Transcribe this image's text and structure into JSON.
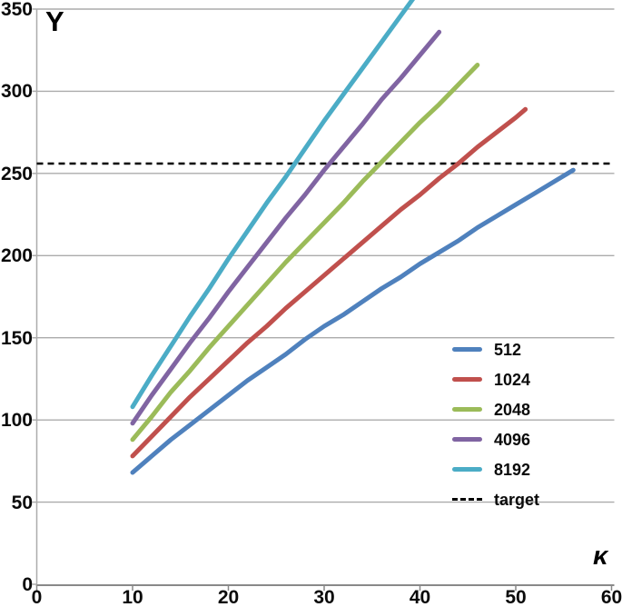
{
  "chart_data": {
    "type": "line",
    "title": "",
    "xlabel": "κ",
    "ylabel": "Y",
    "xlim": [
      0,
      60
    ],
    "ylim": [
      0,
      350
    ],
    "x_ticks": [
      0,
      10,
      20,
      30,
      40,
      50,
      60
    ],
    "y_ticks": [
      0,
      50,
      100,
      150,
      200,
      250,
      300,
      350
    ],
    "grid": "horizontal-only",
    "legend_position": "inside lower right",
    "target_line": {
      "label": "target",
      "value": 256,
      "color": "#000000",
      "style": "dashed"
    },
    "series": [
      {
        "name": "512",
        "color": "#4F81BD",
        "points": [
          [
            10,
            68
          ],
          [
            12,
            78
          ],
          [
            14,
            88
          ],
          [
            16,
            97
          ],
          [
            18,
            106
          ],
          [
            20,
            115
          ],
          [
            22,
            124
          ],
          [
            24,
            132
          ],
          [
            26,
            140
          ],
          [
            28,
            149
          ],
          [
            30,
            157
          ],
          [
            32,
            164
          ],
          [
            34,
            172
          ],
          [
            36,
            180
          ],
          [
            38,
            187
          ],
          [
            40,
            195
          ],
          [
            42,
            202
          ],
          [
            44,
            209
          ],
          [
            46,
            217
          ],
          [
            48,
            224
          ],
          [
            50,
            231
          ],
          [
            52,
            238
          ],
          [
            54,
            245
          ],
          [
            56,
            252
          ]
        ]
      },
      {
        "name": "1024",
        "color": "#C0504D",
        "points": [
          [
            10,
            78
          ],
          [
            12,
            90
          ],
          [
            14,
            102
          ],
          [
            16,
            114
          ],
          [
            18,
            125
          ],
          [
            20,
            136
          ],
          [
            22,
            147
          ],
          [
            24,
            157
          ],
          [
            26,
            168
          ],
          [
            28,
            178
          ],
          [
            30,
            188
          ],
          [
            32,
            198
          ],
          [
            34,
            208
          ],
          [
            36,
            218
          ],
          [
            38,
            228
          ],
          [
            40,
            237
          ],
          [
            42,
            247
          ],
          [
            44,
            256
          ],
          [
            46,
            266
          ],
          [
            48,
            275
          ],
          [
            50,
            284
          ],
          [
            51,
            289
          ]
        ]
      },
      {
        "name": "2048",
        "color": "#9BBB59",
        "points": [
          [
            10,
            88
          ],
          [
            12,
            102
          ],
          [
            14,
            117
          ],
          [
            16,
            130
          ],
          [
            18,
            144
          ],
          [
            20,
            157
          ],
          [
            22,
            170
          ],
          [
            24,
            183
          ],
          [
            26,
            196
          ],
          [
            28,
            208
          ],
          [
            30,
            220
          ],
          [
            32,
            232
          ],
          [
            34,
            245
          ],
          [
            36,
            257
          ],
          [
            38,
            269
          ],
          [
            40,
            281
          ],
          [
            42,
            292
          ],
          [
            44,
            304
          ],
          [
            46,
            316
          ]
        ]
      },
      {
        "name": "4096",
        "color": "#8064A2",
        "points": [
          [
            10,
            98
          ],
          [
            12,
            115
          ],
          [
            14,
            131
          ],
          [
            16,
            147
          ],
          [
            18,
            162
          ],
          [
            20,
            178
          ],
          [
            22,
            193
          ],
          [
            24,
            208
          ],
          [
            26,
            223
          ],
          [
            28,
            237
          ],
          [
            30,
            252
          ],
          [
            32,
            266
          ],
          [
            34,
            280
          ],
          [
            36,
            295
          ],
          [
            38,
            308
          ],
          [
            40,
            322
          ],
          [
            42,
            336
          ]
        ]
      },
      {
        "name": "8192",
        "color": "#4BACC6",
        "points": [
          [
            10,
            108
          ],
          [
            12,
            127
          ],
          [
            14,
            145
          ],
          [
            16,
            163
          ],
          [
            18,
            180
          ],
          [
            20,
            198
          ],
          [
            22,
            215
          ],
          [
            24,
            232
          ],
          [
            26,
            248
          ],
          [
            28,
            265
          ],
          [
            30,
            282
          ],
          [
            32,
            298
          ],
          [
            34,
            314
          ],
          [
            36,
            330
          ],
          [
            38,
            346
          ],
          [
            39.5,
            358
          ]
        ]
      }
    ],
    "legend_items": [
      "512",
      "1024",
      "2048",
      "4096",
      "8192",
      "target"
    ]
  },
  "style_colors": {
    "gridline": "#ABABAB",
    "axis_line": "#898989",
    "tick_text": "#0a0a0a",
    "target": "#000000"
  }
}
